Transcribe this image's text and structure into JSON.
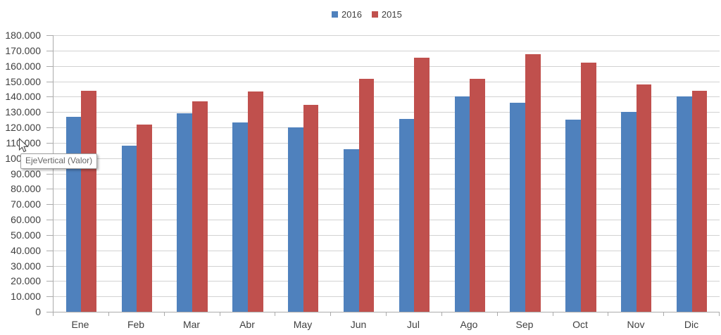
{
  "tooltip": {
    "text": "EjeVertical (Valor)"
  },
  "chart_data": {
    "type": "bar",
    "title": "",
    "xlabel": "",
    "ylabel": "",
    "categories": [
      "Ene",
      "Feb",
      "Mar",
      "Abr",
      "May",
      "Jun",
      "Jul",
      "Ago",
      "Sep",
      "Oct",
      "Nov",
      "Dic"
    ],
    "series": [
      {
        "name": "2016",
        "color": "#4F81BD",
        "values": [
          127000,
          108000,
          129000,
          123000,
          120000,
          106000,
          125500,
          140000,
          136000,
          125000,
          130000,
          140000
        ]
      },
      {
        "name": "2015",
        "color": "#C0504D",
        "values": [
          144000,
          122000,
          137000,
          143500,
          134500,
          151500,
          165500,
          151500,
          167500,
          162000,
          148000,
          144000
        ]
      }
    ],
    "ylim": [
      0,
      180000
    ],
    "ytick_step": 10000,
    "ytick_labels": [
      "0",
      "10.000",
      "20.000",
      "30.000",
      "40.000",
      "50.000",
      "60.000",
      "70.000",
      "80.000",
      "90.000",
      "100.000",
      "110.000",
      "120.000",
      "130.000",
      "140.000",
      "150.000",
      "160.000",
      "170.000",
      "180.000"
    ],
    "grid": true,
    "legend_position": "top-center",
    "axis_color": "#ABABAB",
    "gridline_color": "#D2D2D2",
    "label_color": "#3F3F3F"
  }
}
